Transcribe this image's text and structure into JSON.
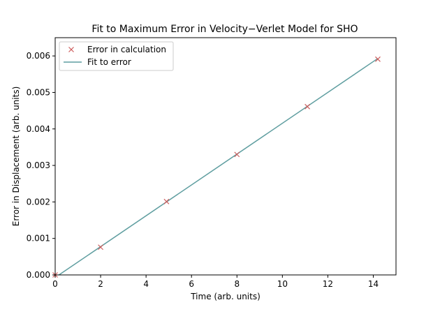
{
  "chart_data": {
    "type": "line",
    "title": "Fit to Maximum Error in Velocity−Verlet Model for SHO",
    "xlabel": "Time (arb. units)",
    "ylabel": "Error in Displacement (arb. units)",
    "xlim": [
      0,
      15
    ],
    "ylim": [
      0,
      0.0065
    ],
    "x_ticks": [
      0,
      2,
      4,
      6,
      8,
      10,
      12,
      14
    ],
    "x_tick_labels": [
      "0",
      "2",
      "4",
      "6",
      "8",
      "10",
      "12",
      "14"
    ],
    "y_ticks": [
      0,
      0.001,
      0.002,
      0.003,
      0.004,
      0.005,
      0.006
    ],
    "y_tick_labels": [
      "0.000",
      "0.001",
      "0.002",
      "0.003",
      "0.004",
      "0.005",
      "0.006"
    ],
    "grid": false,
    "legend_position": "top-left",
    "series": [
      {
        "name": "Error in calculation",
        "kind": "scatter",
        "marker": "x",
        "color": "#cd5c5c",
        "x": [
          0.0,
          2.0,
          4.9,
          8.0,
          11.1,
          14.2
        ],
        "y": [
          0.0,
          0.00076,
          0.00201,
          0.0033,
          0.00461,
          0.00591
        ]
      },
      {
        "name": "Fit to error",
        "kind": "line",
        "color": "#5f9ea0",
        "x": [
          0.0,
          14.2
        ],
        "y": [
          -7e-05,
          0.00593
        ]
      }
    ]
  }
}
